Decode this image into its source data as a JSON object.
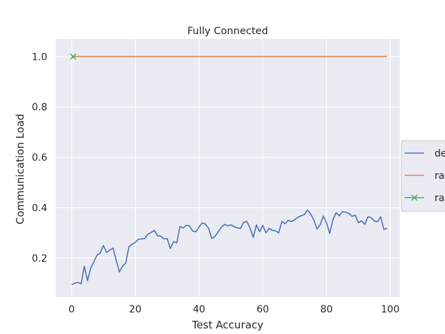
{
  "chart_data": {
    "type": "line",
    "title": "Fully Connected",
    "xlabel": "Test Accuracy",
    "ylabel": "Communication Load",
    "xlim": [
      -5,
      103
    ],
    "ylim": [
      0.045,
      1.07
    ],
    "xticks": [
      0,
      20,
      40,
      60,
      80,
      100
    ],
    "yticks": [
      0.2,
      0.4,
      0.6,
      0.8,
      1.0
    ],
    "xtick_labels": [
      "0",
      "20",
      "40",
      "60",
      "80",
      "100"
    ],
    "ytick_labels": [
      "0.2",
      "0.4",
      "0.6",
      "0.8",
      "1.0"
    ],
    "grid": true,
    "legend_position": "right-outside (clipped)",
    "series": [
      {
        "name": "de",
        "color": "#4c72b0",
        "marker": "none",
        "x": [
          0,
          1,
          2,
          3,
          4,
          5,
          6,
          7,
          8,
          9,
          10,
          11,
          12,
          13,
          14,
          15,
          16,
          17,
          18,
          19,
          20,
          21,
          22,
          23,
          24,
          25,
          26,
          27,
          28,
          29,
          30,
          31,
          32,
          33,
          34,
          35,
          36,
          37,
          38,
          39,
          40,
          41,
          42,
          43,
          44,
          45,
          46,
          47,
          48,
          49,
          50,
          51,
          52,
          53,
          54,
          55,
          56,
          57,
          58,
          59,
          60,
          61,
          62,
          63,
          64,
          65,
          66,
          67,
          68,
          69,
          70,
          71,
          72,
          73,
          74,
          75,
          76,
          77,
          78,
          79,
          80,
          81,
          82,
          83,
          84,
          85,
          86,
          87,
          88,
          89,
          90,
          91,
          92,
          93,
          94,
          95,
          96,
          97,
          98,
          99
        ],
        "y": [
          0.095,
          0.1,
          0.103,
          0.098,
          0.168,
          0.11,
          0.16,
          0.185,
          0.212,
          0.22,
          0.25,
          0.222,
          0.232,
          0.24,
          0.192,
          0.145,
          0.168,
          0.18,
          0.245,
          0.255,
          0.262,
          0.275,
          0.276,
          0.278,
          0.295,
          0.302,
          0.31,
          0.288,
          0.287,
          0.276,
          0.278,
          0.238,
          0.265,
          0.26,
          0.325,
          0.32,
          0.33,
          0.328,
          0.307,
          0.305,
          0.323,
          0.34,
          0.335,
          0.318,
          0.278,
          0.286,
          0.304,
          0.322,
          0.334,
          0.328,
          0.332,
          0.325,
          0.32,
          0.318,
          0.342,
          0.346,
          0.32,
          0.282,
          0.332,
          0.305,
          0.33,
          0.3,
          0.318,
          0.31,
          0.308,
          0.3,
          0.346,
          0.336,
          0.35,
          0.345,
          0.352,
          0.362,
          0.368,
          0.372,
          0.39,
          0.376,
          0.352,
          0.316,
          0.332,
          0.367,
          0.34,
          0.298,
          0.352,
          0.38,
          0.368,
          0.384,
          0.382,
          0.378,
          0.366,
          0.37,
          0.34,
          0.348,
          0.334,
          0.364,
          0.361,
          0.347,
          0.344,
          0.364,
          0.314,
          0.318
        ]
      },
      {
        "name": "ra",
        "color": "#dd8452",
        "marker": "none",
        "x": [
          0,
          99
        ],
        "y": [
          1.0,
          1.0
        ]
      },
      {
        "name": "ra",
        "color": "#55a868",
        "marker": "x",
        "x": [
          0.5
        ],
        "y": [
          1.0
        ]
      }
    ]
  }
}
